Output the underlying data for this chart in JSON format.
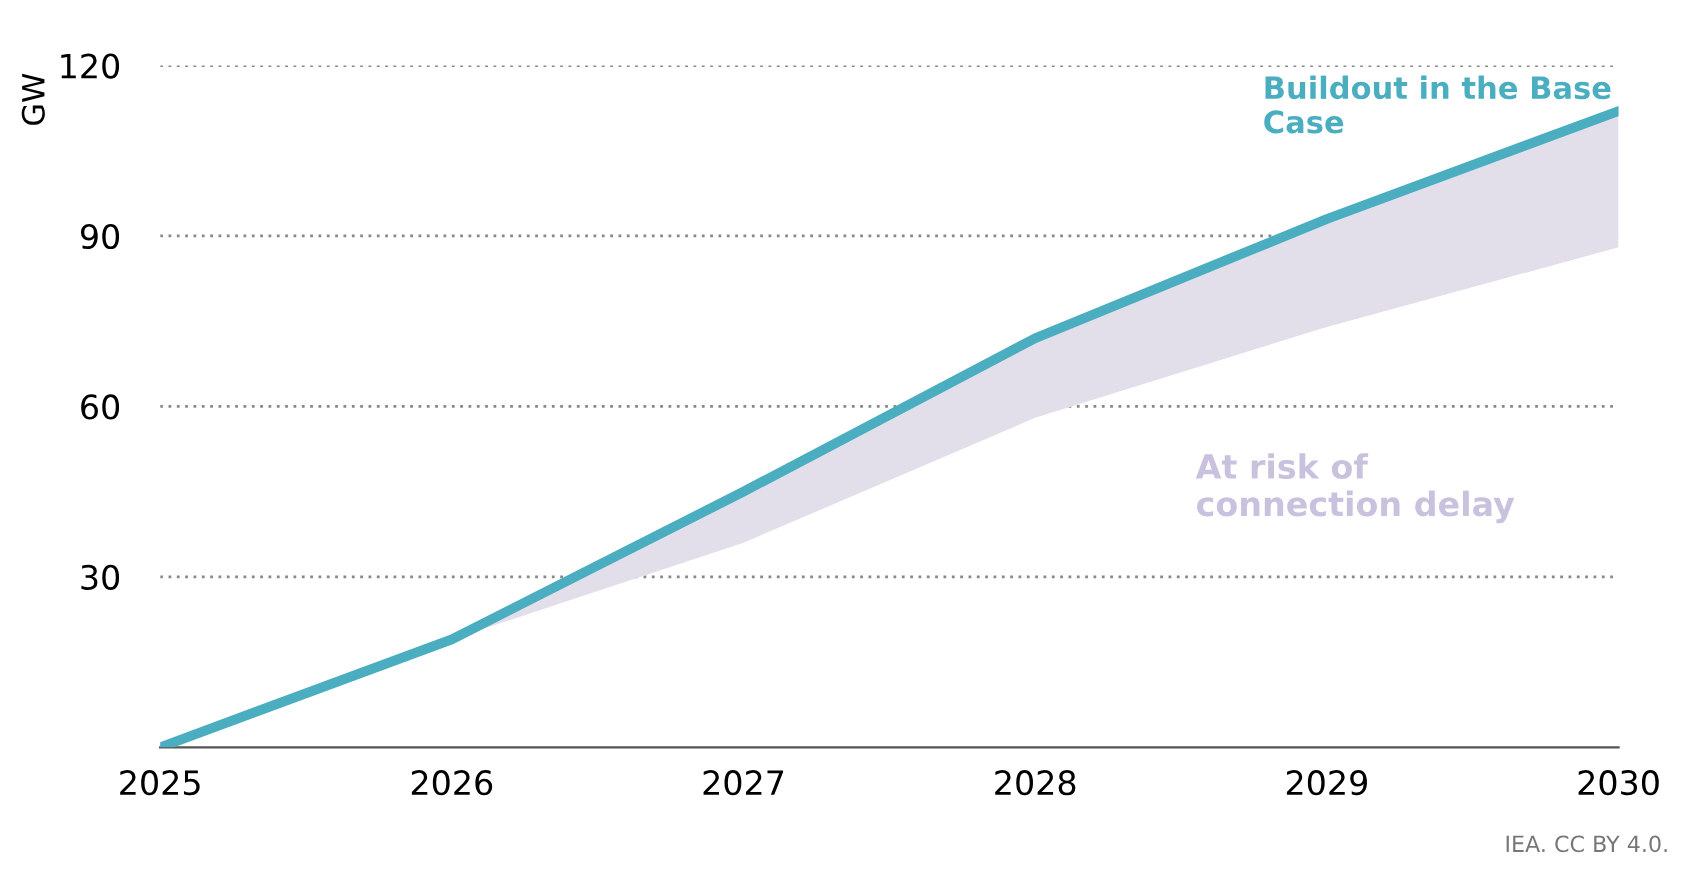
{
  "chart_data": {
    "type": "line",
    "ylabel": "GW",
    "x": [
      2025,
      2026,
      2027,
      2028,
      2029,
      2030
    ],
    "series": [
      {
        "name": "Buildout in the Base Case",
        "color": "#4aaec0",
        "values": [
          0,
          19,
          45,
          72,
          93,
          112
        ],
        "lower": [
          0,
          19,
          36,
          58,
          74,
          88
        ],
        "upper": [
          0,
          19,
          45,
          72,
          93,
          112
        ]
      }
    ],
    "annotations": [
      "At risk of\nconnection delay",
      "IEA. CC BY 4.0."
    ],
    "xlim": [
      2025,
      2030
    ],
    "xticks": [
      2025,
      2026,
      2027,
      2028,
      2029,
      2030
    ],
    "ylim": [
      0,
      120
    ],
    "yticks": [
      30,
      60,
      90,
      120
    ],
    "grid": "y",
    "line_style": "solid",
    "marker": "none",
    "legend": false
  }
}
